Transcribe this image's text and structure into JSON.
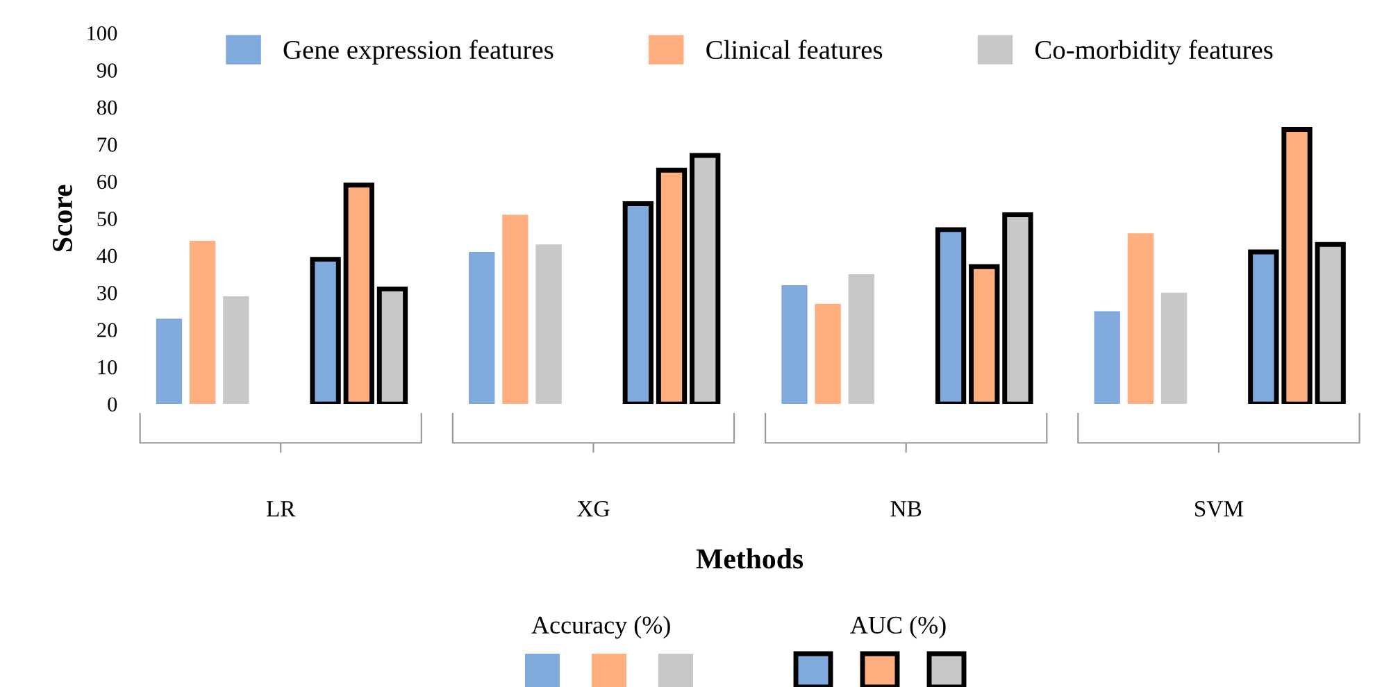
{
  "chart_data": {
    "type": "bar",
    "xlabel": "Methods",
    "ylabel": "Score",
    "categories": [
      "LR",
      "XG",
      "NB",
      "SVM"
    ],
    "series": [
      {
        "name": "Gene expression features",
        "color": "#7faadb",
        "values": [
          23,
          41,
          32,
          25
        ]
      },
      {
        "name": "Clinical features",
        "color": "#ffae7f",
        "values": [
          44,
          51,
          27,
          46
        ]
      },
      {
        "name": "Co-morbidity features",
        "color": "#c8c8c8",
        "values": [
          29,
          43,
          35,
          30
        ]
      },
      {
        "color": "#7faadb",
        "values": [
          39,
          54,
          47,
          41
        ]
      },
      {
        "color": "#ffae7f",
        "values": [
          59,
          63,
          37,
          74
        ]
      },
      {
        "color": "#c8c8c8",
        "values": [
          31,
          67,
          51,
          43
        ]
      }
    ],
    "ylim": [
      0,
      100
    ],
    "yticks": [
      0,
      10,
      20,
      30,
      40,
      50,
      60,
      70,
      80,
      90,
      100
    ],
    "grid": false,
    "legend": "top",
    "annotations": [
      "Accuracy (%)",
      "AUC (%)"
    ]
  }
}
